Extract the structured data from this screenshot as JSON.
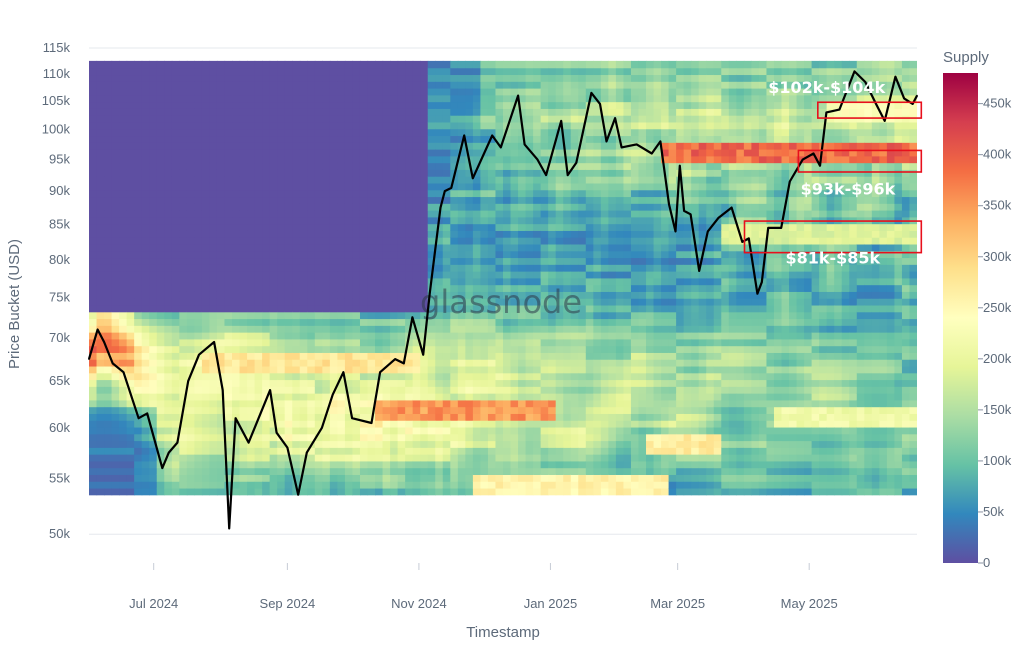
{
  "chart_data": {
    "type": "heatmap",
    "title": "",
    "watermark": "glassnode",
    "xlabel": "Timestamp",
    "ylabel": "Price Bucket (USD)",
    "x_ticks": [
      "Jul 2024",
      "Sep 2024",
      "Nov 2024",
      "Jan 2025",
      "Mar 2025",
      "May 2025"
    ],
    "x_range": [
      "2024-06-01",
      "2025-06-20"
    ],
    "y_scale": "log",
    "y_ticks": [
      "115k",
      "110k",
      "105k",
      "100k",
      "95k",
      "90k",
      "85k",
      "80k",
      "75k",
      "70k",
      "65k",
      "60k",
      "55k",
      "50k"
    ],
    "y_tick_values": [
      115000,
      110000,
      105000,
      100000,
      95000,
      90000,
      85000,
      80000,
      75000,
      70000,
      65000,
      60000,
      55000,
      50000
    ],
    "y_range": [
      48500,
      116000
    ],
    "colorbar": {
      "title": "Supply",
      "ticks": [
        "450k",
        "400k",
        "350k",
        "300k",
        "250k",
        "200k",
        "150k",
        "100k",
        "50k",
        "0"
      ],
      "tick_values": [
        450000,
        400000,
        350000,
        300000,
        250000,
        200000,
        150000,
        100000,
        50000,
        0
      ],
      "range": [
        0,
        480000
      ],
      "colorscale": [
        "#5e4fa2",
        "#3288bd",
        "#66c2a5",
        "#abdda4",
        "#e6f598",
        "#ffffbf",
        "#fee08b",
        "#fdae61",
        "#f46d43",
        "#d53e4f",
        "#9e0142"
      ]
    },
    "heatmap_extent": {
      "x": [
        "2024-06-01",
        "2025-06-20"
      ],
      "y": [
        53500,
        112500
      ],
      "empty_above_price_before_nov_2024": 73000
    },
    "supply_bands": [
      {
        "name": "band-93-96k",
        "price": 96000,
        "from": "2025-02-20",
        "supply": 420000
      },
      {
        "name": "band-62k",
        "price": 62000,
        "from": "2024-10-10",
        "to": "2025-01-05",
        "supply": 380000
      },
      {
        "name": "band-67k",
        "price": 67000,
        "from": "2024-07-25",
        "to": "2024-11-01",
        "supply": 300000
      },
      {
        "name": "band-54k",
        "price": 54500,
        "from": "2024-11-25",
        "to": "2025-02-25",
        "supply": 280000
      },
      {
        "name": "band-58k",
        "price": 58500,
        "from": "2025-02-15",
        "to": "2025-03-20",
        "supply": 290000
      },
      {
        "name": "band-61k",
        "price": 61000,
        "from": "2025-04-15",
        "to": "2025-06-20",
        "supply": 230000
      },
      {
        "name": "band-83k",
        "price": 83500,
        "from": "2025-03-20",
        "to": "2025-06-20",
        "supply": 200000
      },
      {
        "name": "band-103k",
        "price": 103500,
        "from": "2025-05-10",
        "to": "2025-06-20",
        "supply": 250000
      }
    ],
    "series": [
      {
        "name": "",
        "color": "#000000",
        "points": [
          [
            "2024-06-01",
            67500
          ],
          [
            "2024-06-05",
            71000
          ],
          [
            "2024-06-08",
            69500
          ],
          [
            "2024-06-12",
            67000
          ],
          [
            "2024-06-17",
            66000
          ],
          [
            "2024-06-24",
            61000
          ],
          [
            "2024-06-28",
            61500
          ],
          [
            "2024-07-05",
            56000
          ],
          [
            "2024-07-08",
            57500
          ],
          [
            "2024-07-12",
            58500
          ],
          [
            "2024-07-17",
            65000
          ],
          [
            "2024-07-22",
            68000
          ],
          [
            "2024-07-29",
            69500
          ],
          [
            "2024-08-02",
            64000
          ],
          [
            "2024-08-05",
            50500
          ],
          [
            "2024-08-08",
            61000
          ],
          [
            "2024-08-14",
            58500
          ],
          [
            "2024-08-24",
            64000
          ],
          [
            "2024-08-27",
            59500
          ],
          [
            "2024-09-01",
            58000
          ],
          [
            "2024-09-06",
            53500
          ],
          [
            "2024-09-10",
            57500
          ],
          [
            "2024-09-17",
            60000
          ],
          [
            "2024-09-22",
            63500
          ],
          [
            "2024-09-27",
            66000
          ],
          [
            "2024-10-01",
            61000
          ],
          [
            "2024-10-10",
            60500
          ],
          [
            "2024-10-14",
            66000
          ],
          [
            "2024-10-21",
            67500
          ],
          [
            "2024-10-25",
            67000
          ],
          [
            "2024-10-29",
            72500
          ],
          [
            "2024-11-03",
            68000
          ],
          [
            "2024-11-06",
            75500
          ],
          [
            "2024-11-11",
            87500
          ],
          [
            "2024-11-13",
            90000
          ],
          [
            "2024-11-16",
            90500
          ],
          [
            "2024-11-22",
            99000
          ],
          [
            "2024-11-26",
            92000
          ],
          [
            "2024-12-05",
            99000
          ],
          [
            "2024-12-09",
            97000
          ],
          [
            "2024-12-17",
            106000
          ],
          [
            "2024-12-20",
            97500
          ],
          [
            "2024-12-26",
            95000
          ],
          [
            "2024-12-30",
            92500
          ],
          [
            "2025-01-06",
            101500
          ],
          [
            "2025-01-09",
            92500
          ],
          [
            "2025-01-13",
            94500
          ],
          [
            "2025-01-20",
            106500
          ],
          [
            "2025-01-24",
            104500
          ],
          [
            "2025-01-27",
            98000
          ],
          [
            "2025-01-31",
            102000
          ],
          [
            "2025-02-03",
            97000
          ],
          [
            "2025-02-10",
            97500
          ],
          [
            "2025-02-17",
            96000
          ],
          [
            "2025-02-21",
            98000
          ],
          [
            "2025-02-25",
            88000
          ],
          [
            "2025-02-28",
            84000
          ],
          [
            "2025-03-02",
            94000
          ],
          [
            "2025-03-04",
            87000
          ],
          [
            "2025-03-07",
            86500
          ],
          [
            "2025-03-11",
            78500
          ],
          [
            "2025-03-15",
            84000
          ],
          [
            "2025-03-20",
            86000
          ],
          [
            "2025-03-26",
            87500
          ],
          [
            "2025-03-31",
            82500
          ],
          [
            "2025-04-03",
            83000
          ],
          [
            "2025-04-07",
            75500
          ],
          [
            "2025-04-09",
            77000
          ],
          [
            "2025-04-12",
            84500
          ],
          [
            "2025-04-18",
            84500
          ],
          [
            "2025-04-22",
            91500
          ],
          [
            "2025-04-28",
            95000
          ],
          [
            "2025-05-03",
            96000
          ],
          [
            "2025-05-06",
            94000
          ],
          [
            "2025-05-09",
            103000
          ],
          [
            "2025-05-15",
            103500
          ],
          [
            "2025-05-22",
            110500
          ],
          [
            "2025-05-27",
            108500
          ],
          [
            "2025-06-01",
            104500
          ],
          [
            "2025-06-05",
            101500
          ],
          [
            "2025-06-10",
            109500
          ],
          [
            "2025-06-14",
            105500
          ],
          [
            "2025-06-18",
            104500
          ],
          [
            "2025-06-20",
            106000
          ]
        ]
      }
    ],
    "annotations": [
      {
        "text": "$102k-$104k",
        "box": {
          "x": [
            "2025-05-05",
            "2025-06-22"
          ],
          "y": [
            102000,
            104800
          ]
        },
        "label_anchor": [
          "2025-04-12",
          106500
        ]
      },
      {
        "text": "$93k-$96k",
        "box": {
          "x": [
            "2025-04-26",
            "2025-06-22"
          ],
          "y": [
            93000,
            96500
          ]
        },
        "label_anchor": [
          "2025-04-27",
          89500
        ]
      },
      {
        "text": "$81k-$85k",
        "box": {
          "x": [
            "2025-04-01",
            "2025-06-22"
          ],
          "y": [
            81000,
            85500
          ]
        },
        "label_anchor": [
          "2025-04-20",
          79500
        ]
      }
    ],
    "annotation_box_color": "#e8101c",
    "grid": true,
    "legend": "colorbar-right"
  }
}
